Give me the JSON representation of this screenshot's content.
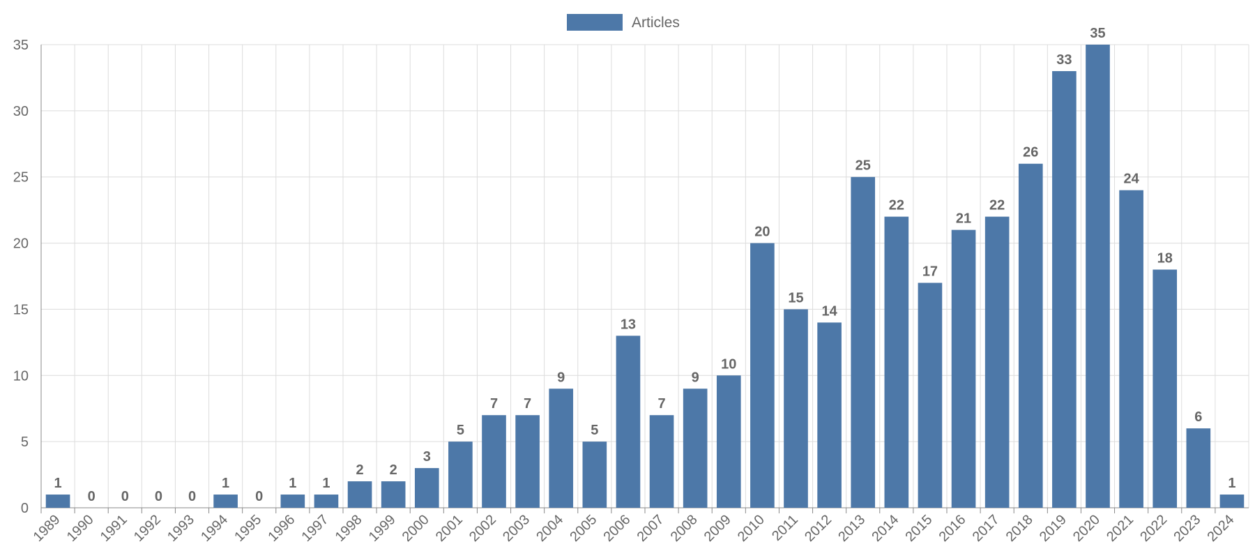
{
  "chart_data": {
    "type": "bar",
    "categories": [
      "1989",
      "1990",
      "1991",
      "1992",
      "1993",
      "1994",
      "1995",
      "1996",
      "1997",
      "1998",
      "1999",
      "2000",
      "2001",
      "2002",
      "2003",
      "2004",
      "2005",
      "2006",
      "2007",
      "2008",
      "2009",
      "2010",
      "2011",
      "2012",
      "2013",
      "2014",
      "2015",
      "2016",
      "2017",
      "2018",
      "2019",
      "2020",
      "2021",
      "2022",
      "2023",
      "2024"
    ],
    "series": [
      {
        "name": "Articles",
        "color": "#4d78a8",
        "values": [
          1,
          0,
          0,
          0,
          0,
          1,
          0,
          1,
          1,
          2,
          2,
          3,
          5,
          7,
          7,
          9,
          5,
          13,
          7,
          9,
          10,
          20,
          15,
          14,
          25,
          22,
          17,
          21,
          22,
          26,
          33,
          35,
          24,
          18,
          6,
          1
        ]
      }
    ],
    "ylim": [
      0,
      35
    ],
    "yticks": [
      0,
      5,
      10,
      15,
      20,
      25,
      30,
      35
    ],
    "grid": true,
    "legend_position": "top-center",
    "data_labels": true,
    "x_label_rotation": "rotated-45"
  }
}
